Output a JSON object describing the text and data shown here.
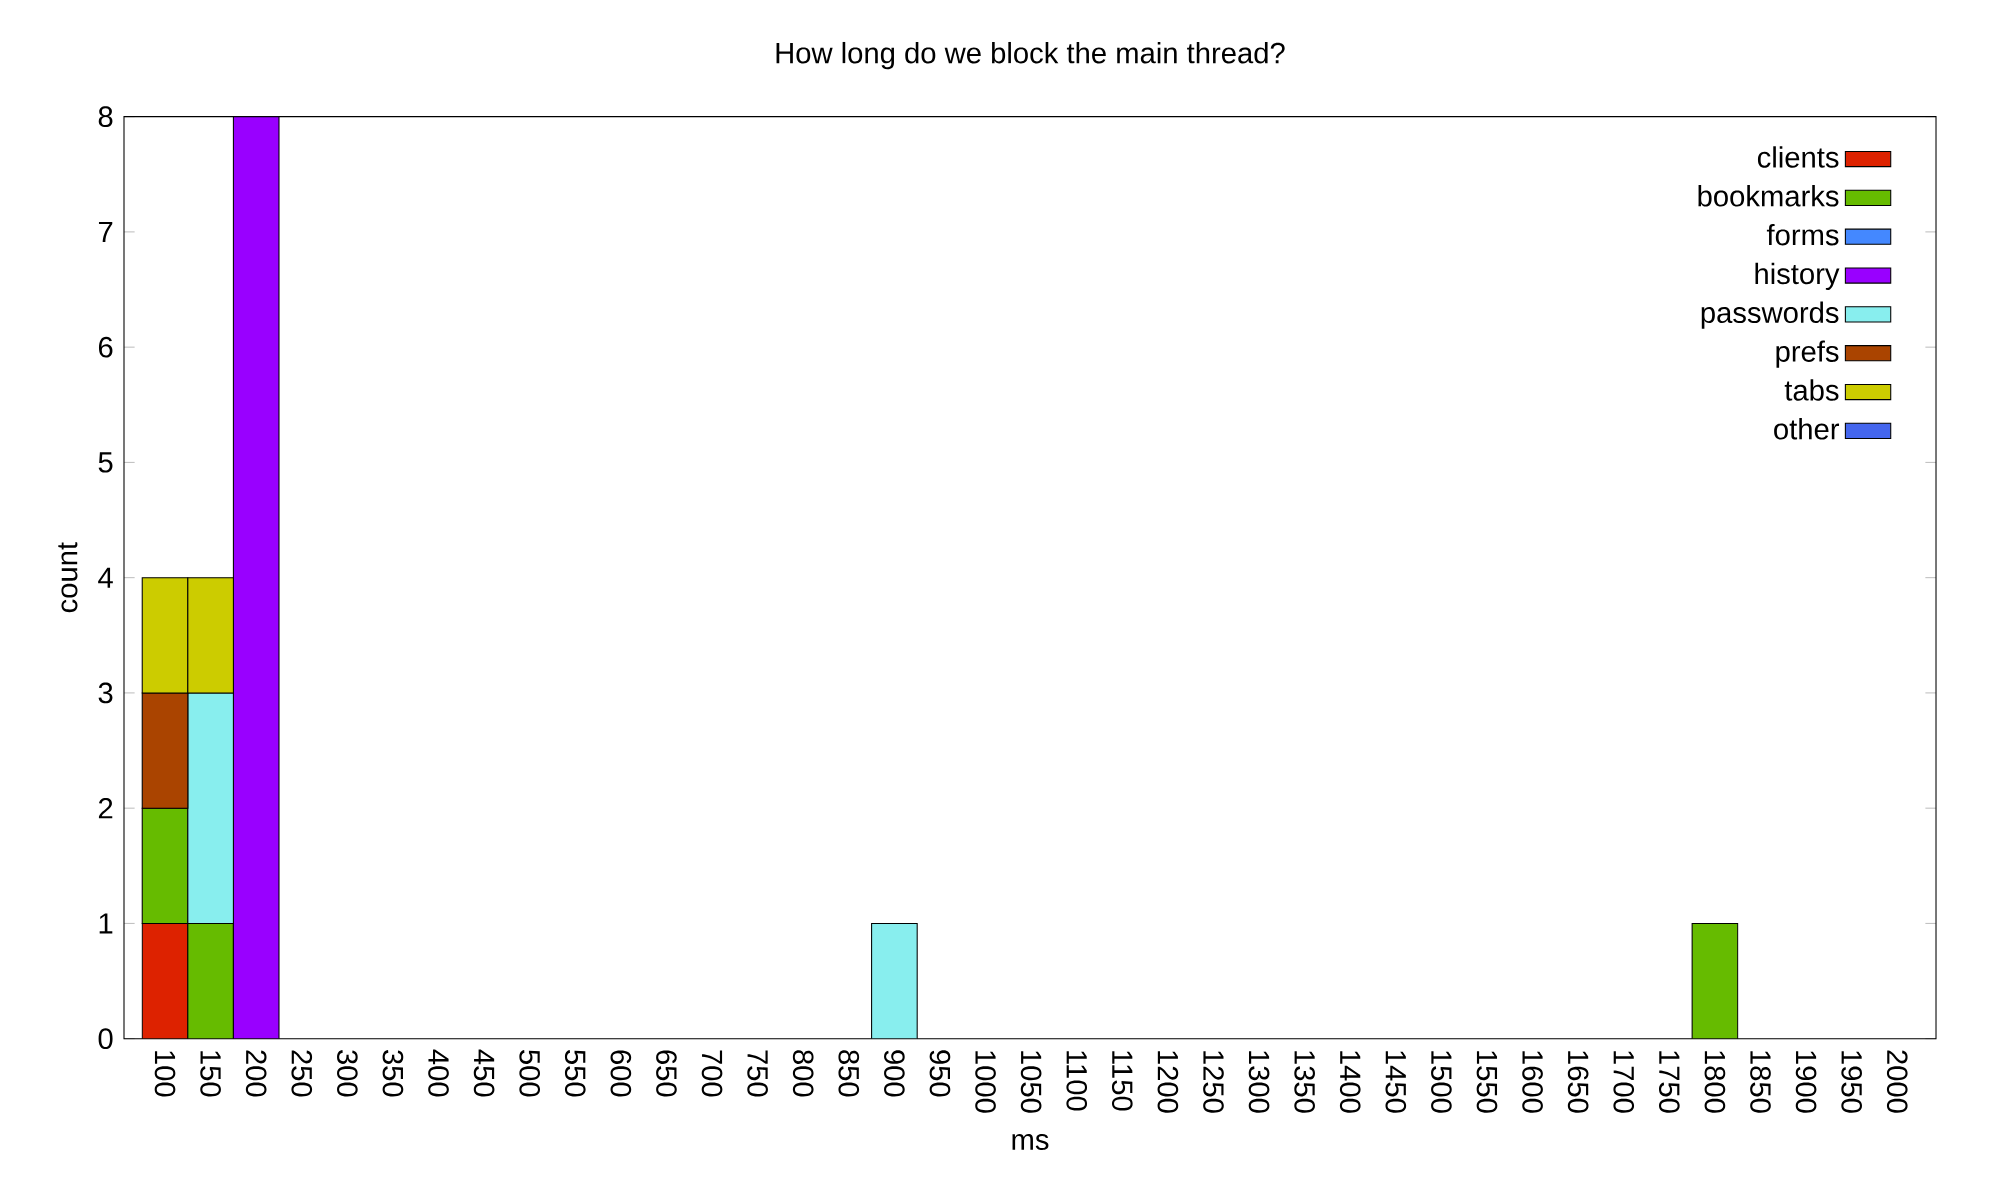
{
  "chart_data": {
    "type": "bar",
    "stacked": true,
    "title": "How long do we block the main thread?",
    "xlabel": "ms",
    "ylabel": "count",
    "categories": [
      "100",
      "150",
      "200",
      "250",
      "300",
      "350",
      "400",
      "450",
      "500",
      "550",
      "600",
      "650",
      "700",
      "750",
      "800",
      "850",
      "900",
      "950",
      "1000",
      "1050",
      "1100",
      "1150",
      "1200",
      "1250",
      "1300",
      "1350",
      "1400",
      "1450",
      "1500",
      "1550",
      "1600",
      "1650",
      "1700",
      "1750",
      "1800",
      "1850",
      "1900",
      "1950",
      "2000"
    ],
    "series": [
      {
        "name": "clients",
        "color": "#dd2200",
        "values": [
          1,
          0,
          0,
          0,
          0,
          0,
          0,
          0,
          0,
          0,
          0,
          0,
          0,
          0,
          0,
          0,
          0,
          0,
          0,
          0,
          0,
          0,
          0,
          0,
          0,
          0,
          0,
          0,
          0,
          0,
          0,
          0,
          0,
          0,
          0,
          0,
          0,
          0,
          0
        ]
      },
      {
        "name": "bookmarks",
        "color": "#66bb00",
        "values": [
          1,
          1,
          0,
          0,
          0,
          0,
          0,
          0,
          0,
          0,
          0,
          0,
          0,
          0,
          0,
          0,
          0,
          0,
          0,
          0,
          0,
          0,
          0,
          0,
          0,
          0,
          0,
          0,
          0,
          0,
          0,
          0,
          0,
          0,
          1,
          0,
          0,
          0,
          0
        ]
      },
      {
        "name": "forms",
        "color": "#4488ff",
        "values": [
          0,
          0,
          0,
          0,
          0,
          0,
          0,
          0,
          0,
          0,
          0,
          0,
          0,
          0,
          0,
          0,
          0,
          0,
          0,
          0,
          0,
          0,
          0,
          0,
          0,
          0,
          0,
          0,
          0,
          0,
          0,
          0,
          0,
          0,
          0,
          0,
          0,
          0,
          0
        ]
      },
      {
        "name": "history",
        "color": "#9900ff",
        "values": [
          0,
          0,
          8,
          0,
          0,
          0,
          0,
          0,
          0,
          0,
          0,
          0,
          0,
          0,
          0,
          0,
          0,
          0,
          0,
          0,
          0,
          0,
          0,
          0,
          0,
          0,
          0,
          0,
          0,
          0,
          0,
          0,
          0,
          0,
          0,
          0,
          0,
          0,
          0
        ]
      },
      {
        "name": "passwords",
        "color": "#88eeee",
        "values": [
          0,
          2,
          0,
          0,
          0,
          0,
          0,
          0,
          0,
          0,
          0,
          0,
          0,
          0,
          0,
          0,
          1,
          0,
          0,
          0,
          0,
          0,
          0,
          0,
          0,
          0,
          0,
          0,
          0,
          0,
          0,
          0,
          0,
          0,
          0,
          0,
          0,
          0,
          0
        ]
      },
      {
        "name": "prefs",
        "color": "#aa4400",
        "values": [
          1,
          0,
          0,
          0,
          0,
          0,
          0,
          0,
          0,
          0,
          0,
          0,
          0,
          0,
          0,
          0,
          0,
          0,
          0,
          0,
          0,
          0,
          0,
          0,
          0,
          0,
          0,
          0,
          0,
          0,
          0,
          0,
          0,
          0,
          0,
          0,
          0,
          0,
          0
        ]
      },
      {
        "name": "tabs",
        "color": "#cccc00",
        "values": [
          1,
          1,
          0,
          0,
          0,
          0,
          0,
          0,
          0,
          0,
          0,
          0,
          0,
          0,
          0,
          0,
          0,
          0,
          0,
          0,
          0,
          0,
          0,
          0,
          0,
          0,
          0,
          0,
          0,
          0,
          0,
          0,
          0,
          0,
          0,
          0,
          0,
          0,
          0
        ]
      },
      {
        "name": "other",
        "color": "#4466ee",
        "values": [
          0,
          0,
          0,
          0,
          0,
          0,
          0,
          0,
          0,
          0,
          0,
          0,
          0,
          0,
          0,
          0,
          0,
          0,
          0,
          0,
          0,
          0,
          0,
          0,
          0,
          0,
          0,
          0,
          0,
          0,
          0,
          0,
          0,
          0,
          0,
          0,
          0,
          0,
          0
        ]
      }
    ],
    "ylim": [
      0,
      8
    ],
    "yticks": [
      0,
      1,
      2,
      3,
      4,
      5,
      6,
      7,
      8
    ],
    "grid": false,
    "legend": "top right"
  }
}
